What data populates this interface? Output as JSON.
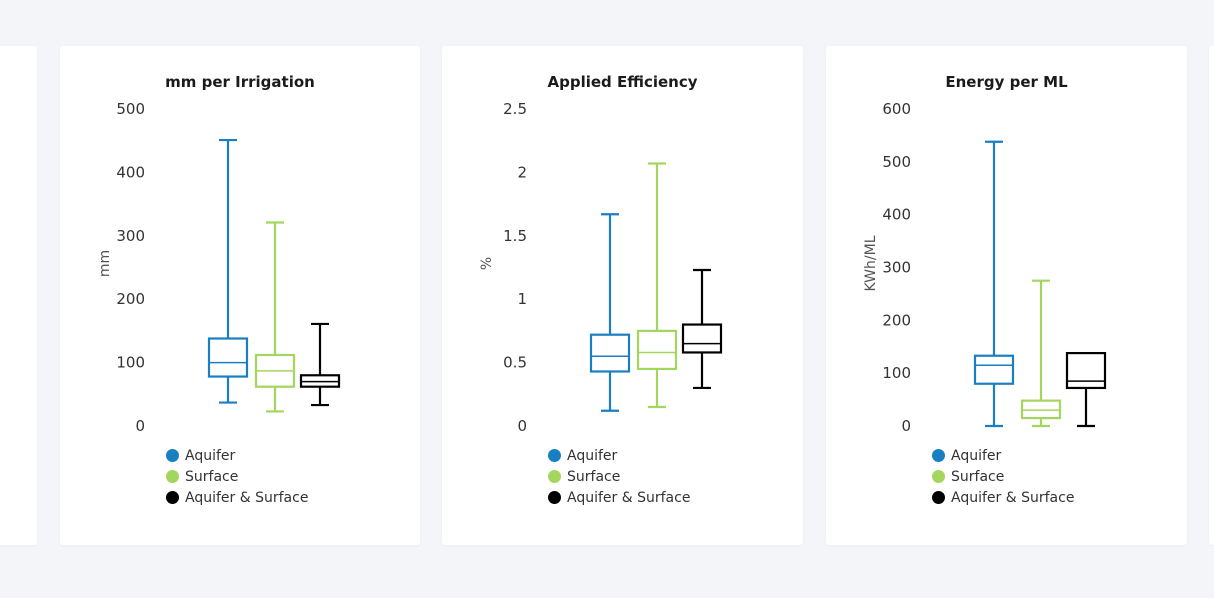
{
  "chart_data": [
    {
      "type": "box",
      "title": "mm per Irrigation",
      "ylabel": "mm",
      "ylim": [
        0,
        500
      ],
      "yticks": [
        0,
        100,
        200,
        300,
        400,
        500
      ],
      "series": [
        {
          "name": "Aquifer",
          "color": "#1a7fc1",
          "min": 37,
          "q1": 78,
          "median": 100,
          "q3": 138,
          "max": 451
        },
        {
          "name": "Surface",
          "color": "#a3d65c",
          "min": 23,
          "q1": 62,
          "median": 87,
          "q3": 112,
          "max": 321
        },
        {
          "name": "Aquifer & Surface",
          "color": "#000000",
          "min": 33,
          "q1": 62,
          "median": 70,
          "q3": 80,
          "max": 161
        }
      ]
    },
    {
      "type": "box",
      "title": "Applied Efficiency",
      "ylabel": "%",
      "ylim": [
        0,
        2.5
      ],
      "yticks": [
        0,
        0.5,
        1,
        1.5,
        2,
        2.5
      ],
      "series": [
        {
          "name": "Aquifer",
          "color": "#1a7fc1",
          "min": 0.12,
          "q1": 0.43,
          "median": 0.55,
          "q3": 0.72,
          "max": 1.67
        },
        {
          "name": "Surface",
          "color": "#a3d65c",
          "min": 0.15,
          "q1": 0.45,
          "median": 0.58,
          "q3": 0.75,
          "max": 2.07
        },
        {
          "name": "Aquifer & Surface",
          "color": "#000000",
          "min": 0.3,
          "q1": 0.58,
          "median": 0.65,
          "q3": 0.8,
          "max": 1.23
        }
      ]
    },
    {
      "type": "box",
      "title": "Energy per ML",
      "ylabel": "KWh/ML",
      "ylim": [
        0,
        600
      ],
      "yticks": [
        0,
        100,
        200,
        300,
        400,
        500,
        600
      ],
      "series": [
        {
          "name": "Aquifer",
          "color": "#1a7fc1",
          "min": 0,
          "q1": 80,
          "median": 115,
          "q3": 133,
          "max": 538
        },
        {
          "name": "Surface",
          "color": "#a3d65c",
          "min": 0,
          "q1": 15,
          "median": 30,
          "q3": 48,
          "max": 275
        },
        {
          "name": "Aquifer & Surface",
          "color": "#000000",
          "min": 0,
          "q1": 72,
          "median": 85,
          "q3": 138,
          "max": 138
        }
      ]
    }
  ]
}
